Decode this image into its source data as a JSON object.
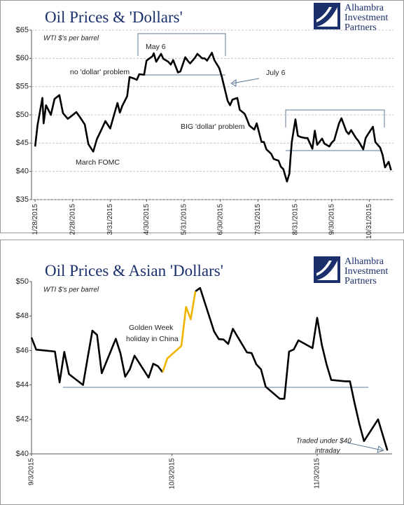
{
  "chart_data": [
    {
      "type": "line",
      "title": "Oil Prices & 'Dollars'",
      "logo": [
        "Alhambra",
        "Investment",
        "Partners"
      ],
      "annotations": [
        "WTI $'s per barrel",
        "May 6",
        "no 'dollar' problem",
        "July 6",
        "BIG 'dollar' problem",
        "March FOMC"
      ],
      "x": [
        "1/28/2015",
        "1/30/2015",
        "2/3/2015",
        "2/4/2015",
        "2/6/2015",
        "2/10/2015",
        "2/13/2015",
        "2/17/2015",
        "2/20/2015",
        "2/24/2015",
        "2/27/2015",
        "3/3/2015",
        "3/6/2015",
        "3/10/2015",
        "3/13/2015",
        "3/17/2015",
        "3/20/2015",
        "3/24/2015",
        "3/27/2015",
        "3/31/2015",
        "4/2/2015",
        "4/6/2015",
        "4/8/2015",
        "4/10/2015",
        "4/14/2015",
        "4/16/2015",
        "4/20/2015",
        "4/22/2015",
        "4/24/2015",
        "4/28/2015",
        "4/30/2015",
        "5/5/2015",
        "5/6/2015",
        "5/8/2015",
        "5/12/2015",
        "5/14/2015",
        "5/18/2015",
        "5/20/2015",
        "5/22/2015",
        "5/26/2015",
        "5/28/2015",
        "6/1/2015",
        "6/3/2015",
        "6/5/2015",
        "6/9/2015",
        "6/11/2015",
        "6/15/2015",
        "6/17/2015",
        "6/19/2015",
        "6/23/2015",
        "6/25/2015",
        "6/29/2015",
        "7/1/2015",
        "7/6/2015",
        "7/8/2015",
        "7/10/2015",
        "7/14/2015",
        "7/16/2015",
        "7/20/2015",
        "7/22/2015",
        "7/24/2015",
        "7/28/2015",
        "7/30/2015",
        "8/3/2015",
        "8/5/2015",
        "8/7/2015",
        "8/11/2015",
        "8/13/2015",
        "8/17/2015",
        "8/19/2015",
        "8/21/2015",
        "8/24/2015",
        "8/26/2015",
        "8/27/2015",
        "8/28/2015",
        "8/31/2015",
        "9/2/2015",
        "9/4/2015",
        "9/8/2015",
        "9/10/2015",
        "9/14/2015",
        "9/16/2015",
        "9/18/2015",
        "9/22/2015",
        "9/24/2015",
        "9/28/2015",
        "9/30/2015",
        "10/2/2015",
        "10/6/2015",
        "10/8/2015",
        "10/12/2015",
        "10/14/2015",
        "10/16/2015",
        "10/20/2015",
        "10/22/2015",
        "10/26/2015",
        "10/28/2015",
        "10/30/2015",
        "11/3/2015",
        "11/5/2015",
        "11/9/2015",
        "11/11/2015",
        "11/13/2015",
        "11/16/2015",
        "11/18/2015"
      ],
      "series": [
        {
          "color": "#000000",
          "values": [
            44.4,
            48.2,
            53.0,
            48.5,
            51.7,
            50.0,
            52.8,
            53.5,
            50.3,
            49.3,
            49.8,
            50.5,
            49.6,
            48.3,
            44.8,
            43.5,
            45.7,
            47.5,
            48.9,
            47.6,
            49.1,
            52.1,
            50.4,
            51.6,
            53.3,
            56.7,
            56.4,
            56.2,
            57.2,
            57.1,
            59.6,
            60.4,
            60.9,
            59.4,
            60.8,
            59.9,
            59.4,
            58.9,
            59.7,
            57.5,
            57.7,
            60.2,
            59.6,
            59.1,
            60.1,
            60.8,
            60.0,
            60.0,
            59.6,
            61.0,
            59.7,
            58.3,
            56.9,
            52.5,
            51.7,
            52.7,
            53.0,
            50.9,
            50.2,
            49.2,
            48.1,
            47.4,
            48.5,
            45.2,
            45.2,
            43.9,
            43.1,
            42.2,
            41.9,
            40.8,
            40.4,
            38.2,
            39.6,
            42.6,
            45.2,
            49.2,
            46.3,
            46.1,
            45.9,
            45.9,
            44.0,
            47.2,
            44.7,
            45.8,
            44.9,
            44.4,
            45.1,
            45.5,
            48.5,
            49.4,
            47.1,
            46.6,
            47.3,
            45.9,
            45.4,
            43.9,
            45.9,
            46.6,
            47.9,
            45.2,
            44.2,
            42.9,
            40.7,
            41.7,
            40.2
          ]
        }
      ],
      "xlim": [
        "1/25/2015",
        "11/20/2015"
      ],
      "xticks": [
        "1/28/2015",
        "2/28/2015",
        "3/31/2015",
        "4/30/2015",
        "5/31/2015",
        "6/30/2015",
        "7/31/2015",
        "8/31/2015",
        "9/30/2015",
        "10/31/2015"
      ],
      "ylim": [
        35,
        65
      ],
      "yticks": [
        {
          "value": 35,
          "label": "$35"
        },
        {
          "value": 40,
          "label": "$40"
        },
        {
          "value": 45,
          "label": "$45"
        },
        {
          "value": 50,
          "label": "$50"
        },
        {
          "value": 55,
          "label": "$55"
        },
        {
          "value": 60,
          "label": "$60"
        },
        {
          "value": 65,
          "label": "$65"
        }
      ],
      "grid": true
    },
    {
      "type": "line",
      "title": "Oil Prices & Asian 'Dollars'",
      "logo": [
        "Alhambra",
        "Investment",
        "Partners"
      ],
      "annotations": [
        "WTI $'s per barrel",
        "Golden Week",
        "holiday in China",
        "Traded under $40",
        "intraday"
      ],
      "x": [
        "9/3/2015",
        "9/4/2015",
        "9/8/2015",
        "9/9/2015",
        "9/10/2015",
        "9/11/2015",
        "9/14/2015",
        "9/15/2015",
        "9/16/2015",
        "9/17/2015",
        "9/18/2015",
        "9/21/2015",
        "9/22/2015",
        "9/23/2015",
        "9/24/2015",
        "9/25/2015",
        "9/28/2015",
        "9/29/2015",
        "9/30/2015",
        "10/1/2015",
        "10/2/2015",
        "10/5/2015",
        "10/6/2015",
        "10/7/2015",
        "10/8/2015",
        "10/9/2015",
        "10/12/2015",
        "10/13/2015",
        "10/14/2015",
        "10/15/2015",
        "10/16/2015",
        "10/19/2015",
        "10/20/2015",
        "10/21/2015",
        "10/22/2015",
        "10/23/2015",
        "10/26/2015",
        "10/27/2015",
        "10/28/2015",
        "10/29/2015",
        "10/30/2015",
        "11/2/2015",
        "11/3/2015",
        "11/4/2015",
        "11/5/2015",
        "11/6/2015",
        "11/9/2015",
        "11/10/2015",
        "11/11/2015",
        "11/12/2015",
        "11/13/2015",
        "11/16/2015",
        "11/17/2015",
        "11/18/2015"
      ],
      "series": [
        {
          "color": "#000000",
          "values": [
            46.75,
            46.05,
            45.94,
            44.15,
            45.92,
            44.63,
            44.0,
            45.59,
            47.15,
            46.9,
            44.68,
            46.68,
            45.83,
            44.48,
            44.91,
            45.7,
            44.43,
            45.23,
            45.09,
            44.74,
            null,
            null,
            null,
            null,
            49.43,
            49.63,
            47.1,
            46.66,
            46.64,
            46.38,
            47.26,
            45.89,
            45.85,
            45.2,
            44.91,
            43.9,
            43.2,
            43.2,
            45.94,
            46.06,
            46.59,
            46.14,
            47.9,
            46.32,
            45.2,
            44.29,
            44.21,
            44.21,
            42.93,
            41.75,
            40.74,
            42.0,
            41.1,
            40.2
          ]
        },
        {
          "color": "#f0b400",
          "values": [
            null,
            null,
            null,
            null,
            null,
            null,
            null,
            null,
            null,
            null,
            null,
            null,
            null,
            null,
            null,
            null,
            null,
            null,
            null,
            44.74,
            45.54,
            46.26,
            48.53,
            47.81,
            49.43,
            null,
            null,
            null,
            null,
            null,
            null,
            null,
            null,
            null,
            null,
            null,
            null,
            null,
            null,
            null,
            null,
            null,
            null,
            null,
            null,
            null,
            null,
            null,
            null,
            null,
            null,
            null,
            null,
            null
          ]
        }
      ],
      "xlim": [
        "9/3/2015",
        "11/19/2015"
      ],
      "xticks": [
        "9/3/2015",
        "10/3/2015",
        "11/3/2015"
      ],
      "ylim": [
        40,
        50
      ],
      "yticks": [
        {
          "value": 40,
          "label": "$40"
        },
        {
          "value": 42,
          "label": "$42"
        },
        {
          "value": 44,
          "label": "$44"
        },
        {
          "value": 46,
          "label": "$46"
        },
        {
          "value": 48,
          "label": "$48"
        },
        {
          "value": 50,
          "label": "$50"
        }
      ],
      "grid": false
    }
  ]
}
